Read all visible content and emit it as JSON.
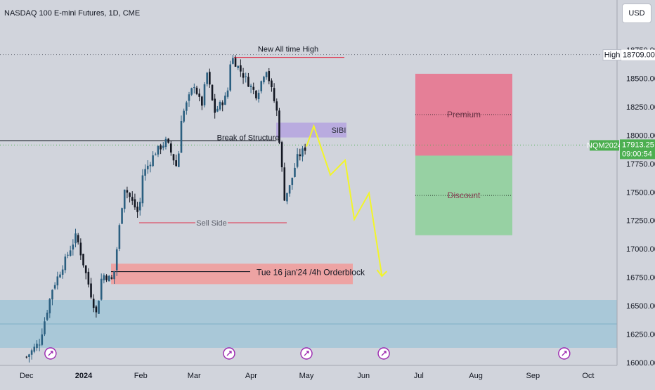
{
  "header": {
    "symbol_title": "NASDAQ 100 E-mini Futures, 1D, CME",
    "currency_button": "USD"
  },
  "colors": {
    "background": "#d1d4dc",
    "candle_up": "#2b5f80",
    "candle_down": "#131722",
    "premium_zone": "#e57f97",
    "discount_zone": "#97d1a3",
    "orderblock_zone": "#eda3a3",
    "sibi_zone": "#b9abdf",
    "demand_zone": "#a9c8d8",
    "projection": "#f2f52a",
    "price_badge": "#4caf50"
  },
  "chart_data": {
    "type": "candlestick",
    "title": "NASDAQ 100 E-mini Futures, 1D, CME",
    "y_axis": {
      "ticks": [
        "18750.00",
        "18500.00",
        "18250.00",
        "18000.00",
        "17750.00",
        "17500.00",
        "17250.00",
        "17000.00",
        "16750.00",
        "16500.00",
        "16250.00",
        "16000.00"
      ],
      "ylim": [
        16000,
        18850
      ]
    },
    "x_axis": {
      "ticks": [
        "Dec",
        "2024",
        "Feb",
        "Mar",
        "Apr",
        "May",
        "Jun",
        "Jul",
        "Aug",
        "Sep",
        "Oct"
      ]
    },
    "series": [
      {
        "name": "NQM2024",
        "close_path": [
          {
            "date": "2023-12-01",
            "close": 16050
          },
          {
            "date": "2023-12-08",
            "close": 16180
          },
          {
            "date": "2023-12-15",
            "close": 16650
          },
          {
            "date": "2023-12-22",
            "close": 16900
          },
          {
            "date": "2023-12-28",
            "close": 17120
          },
          {
            "date": "2024-01-05",
            "close": 16600
          },
          {
            "date": "2024-01-08",
            "close": 16420
          },
          {
            "date": "2024-01-11",
            "close": 16780
          },
          {
            "date": "2024-01-17",
            "close": 16720
          },
          {
            "date": "2024-01-23",
            "close": 17550
          },
          {
            "date": "2024-01-31",
            "close": 17300
          },
          {
            "date": "2024-02-02",
            "close": 17650
          },
          {
            "date": "2024-02-09",
            "close": 17850
          },
          {
            "date": "2024-02-15",
            "close": 17950
          },
          {
            "date": "2024-02-21",
            "close": 17700
          },
          {
            "date": "2024-02-23",
            "close": 18150
          },
          {
            "date": "2024-03-01",
            "close": 18450
          },
          {
            "date": "2024-03-05",
            "close": 18250
          },
          {
            "date": "2024-03-08",
            "close": 18550
          },
          {
            "date": "2024-03-12",
            "close": 18200
          },
          {
            "date": "2024-03-19",
            "close": 18350
          },
          {
            "date": "2024-03-21",
            "close": 18700
          },
          {
            "date": "2024-03-28",
            "close": 18520
          },
          {
            "date": "2024-04-04",
            "close": 18350
          },
          {
            "date": "2024-04-09",
            "close": 18600
          },
          {
            "date": "2024-04-15",
            "close": 18200
          },
          {
            "date": "2024-04-19",
            "close": 17450
          },
          {
            "date": "2024-04-22",
            "close": 17550
          },
          {
            "date": "2024-04-26",
            "close": 17800
          },
          {
            "date": "2024-05-01",
            "close": 17900
          }
        ]
      }
    ],
    "last_price": {
      "label": "NQM2024",
      "value": "17913.25",
      "countdown": "09:00:54"
    },
    "high": {
      "label": "High",
      "value": "18709.00"
    },
    "annotations": {
      "ath": "New All  time High",
      "bos": "Break of Structure",
      "sibi": "SIBI",
      "sell_side": "Sell Side",
      "orderblock": "Tue 16 jan'24 /4h Orderblock",
      "premium": "Premium",
      "discount": "Discount"
    },
    "zones": [
      {
        "name": "premium",
        "from": 17820,
        "to": 18540
      },
      {
        "name": "discount",
        "from": 17120,
        "to": 17820
      },
      {
        "name": "orderblock",
        "from": 16690,
        "to": 16870
      },
      {
        "name": "sibi",
        "from": 17980,
        "to": 18110
      },
      {
        "name": "demand",
        "from": 16130,
        "to": 16550
      }
    ],
    "levels": [
      {
        "name": "ath",
        "value": 18709
      },
      {
        "name": "bos",
        "value": 17950
      },
      {
        "name": "sell_side",
        "value": 17230
      },
      {
        "name": "orderblock",
        "value": 16800
      },
      {
        "name": "demand_mid",
        "value": 16340
      }
    ],
    "projection": [
      {
        "date": "2024-05-01",
        "price": 17900
      },
      {
        "date": "2024-05-05",
        "price": 18080
      },
      {
        "date": "2024-05-14",
        "price": 17650
      },
      {
        "date": "2024-05-22",
        "price": 17780
      },
      {
        "date": "2024-05-27",
        "price": 17260
      },
      {
        "date": "2024-06-04",
        "price": 17490
      },
      {
        "date": "2024-06-11",
        "price": 16760
      }
    ],
    "event_markers": [
      "2023-12-14",
      "2024-03-20",
      "2024-05-01",
      "2024-06-12",
      "2024-09-18"
    ],
    "grid": false
  }
}
